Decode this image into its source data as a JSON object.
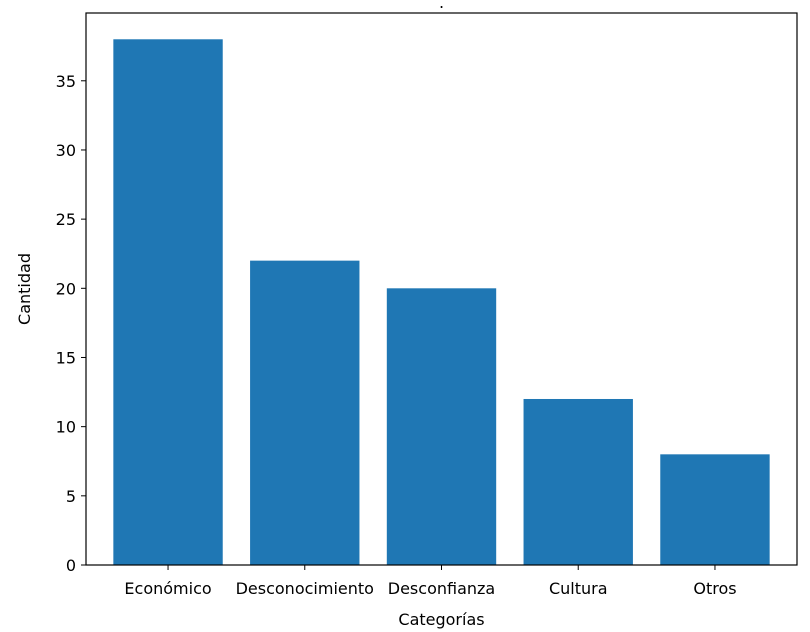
{
  "chart_data": {
    "type": "bar",
    "title": ".",
    "xlabel": "Categorías",
    "ylabel": "Cantidad",
    "categories": [
      "Económico",
      "Desconocimiento",
      "Desconfianza",
      "Cultura",
      "Otros"
    ],
    "values": [
      38,
      22,
      20,
      12,
      8
    ],
    "ylim": [
      0,
      39.9
    ],
    "yticks": [
      0,
      5,
      10,
      15,
      20,
      25,
      30,
      35
    ],
    "grid": false,
    "legend": false,
    "colors": {
      "bar": "#1f77b4",
      "axis": "#000000",
      "background": "#ffffff"
    }
  }
}
